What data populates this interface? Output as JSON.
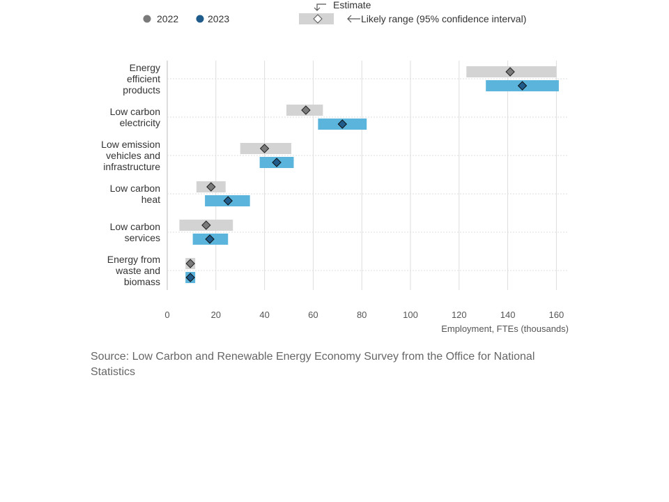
{
  "legend": {
    "series_2022": "2022",
    "series_2023": "2023",
    "estimate": "Estimate",
    "range": "Likely range (95% confidence interval)"
  },
  "colors": {
    "range_2022": "#d3d3d3",
    "range_2023": "#5ab4dc",
    "marker_2022": "#7a7a7a",
    "marker_2023": "#1f5c8c",
    "gridline": "#dddddd",
    "axis": "#bbbbbb"
  },
  "source": "Source: Low Carbon and Renewable Energy Economy Survey from the Office for National Statistics",
  "chart_data": {
    "type": "range-dot",
    "orientation": "horizontal",
    "xlabel": "Employment, FTEs (thousands)",
    "xlim": [
      0,
      165
    ],
    "xticks": [
      0,
      20,
      40,
      60,
      80,
      100,
      120,
      140,
      160
    ],
    "grid": "vertical",
    "legend_placement": "top",
    "categories": [
      [
        "Energy",
        "efficient",
        "products"
      ],
      [
        "Low carbon",
        "electricity"
      ],
      [
        "Low emission",
        "vehicles and",
        "infrastructure"
      ],
      [
        "Low carbon",
        "heat"
      ],
      [
        "Low carbon",
        "services"
      ],
      [
        "Energy from",
        "waste and",
        "biomass"
      ]
    ],
    "series": [
      {
        "name": "2022",
        "estimate": [
          141,
          57,
          40,
          18,
          16,
          9.5
        ],
        "lower": [
          123,
          49,
          30,
          12,
          5,
          7.5
        ],
        "upper": [
          160,
          64,
          51,
          24,
          27,
          11.5
        ]
      },
      {
        "name": "2023",
        "estimate": [
          146,
          72,
          45,
          25,
          17.5,
          9.5
        ],
        "lower": [
          131,
          62,
          38,
          15.5,
          10.5,
          7.5
        ],
        "upper": [
          161,
          82,
          52,
          34,
          25,
          11.5
        ]
      }
    ]
  }
}
